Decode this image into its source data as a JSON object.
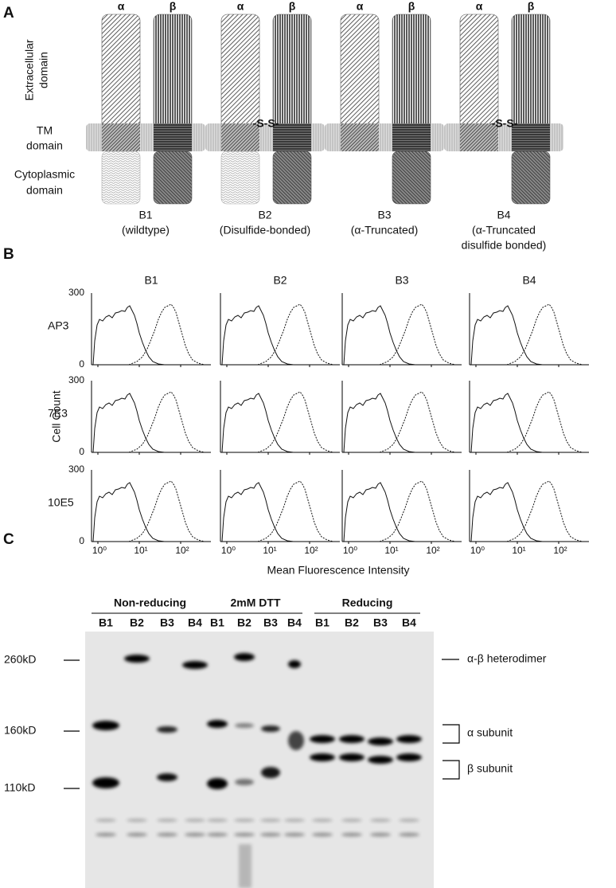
{
  "panel_a": {
    "label": "A",
    "row_labels": {
      "extracellular": [
        "Extracellular",
        "domain"
      ],
      "tm": [
        "TM",
        "domain"
      ],
      "cytoplasmic": [
        "Cytoplasmic",
        "domain"
      ]
    },
    "subunits": [
      "α",
      "β"
    ],
    "bond": "-S-S-",
    "constructs": [
      {
        "name": "B1",
        "desc": [
          "(wildtype)"
        ]
      },
      {
        "name": "B2",
        "desc": [
          "(Disulfide-bonded)"
        ]
      },
      {
        "name": "B3",
        "desc": [
          "(α-Truncated)"
        ]
      },
      {
        "name": "B4",
        "desc": [
          "(α-Truncated",
          "disulfide bonded)"
        ]
      }
    ]
  },
  "panel_b": {
    "label": "B",
    "columns": [
      "B1",
      "B2",
      "B3",
      "B4"
    ],
    "rows": [
      "AP3",
      "7E3",
      "10E5"
    ],
    "y_axis_label": "Cell Count",
    "yticks": [
      300,
      0
    ],
    "xtick_labels": [
      "10⁰",
      "10¹",
      "10²"
    ],
    "x_axis_label": "Mean Fluorescence Intensity"
  },
  "panel_c": {
    "label": "C",
    "groups": [
      {
        "name": "Non-reducing",
        "lanes": [
          "B1",
          "B2",
          "B3",
          "B4"
        ]
      },
      {
        "name": "2mM DTT",
        "lanes": [
          "B1",
          "B2",
          "B3",
          "B4"
        ]
      },
      {
        "name": "Reducing",
        "lanes": [
          "B1",
          "B2",
          "B3",
          "B4"
        ]
      }
    ],
    "markers": [
      "260kD",
      "160kD",
      "110kD"
    ],
    "band_labels": [
      "α-β heterodimer",
      "α subunit",
      "β subunit"
    ]
  }
}
